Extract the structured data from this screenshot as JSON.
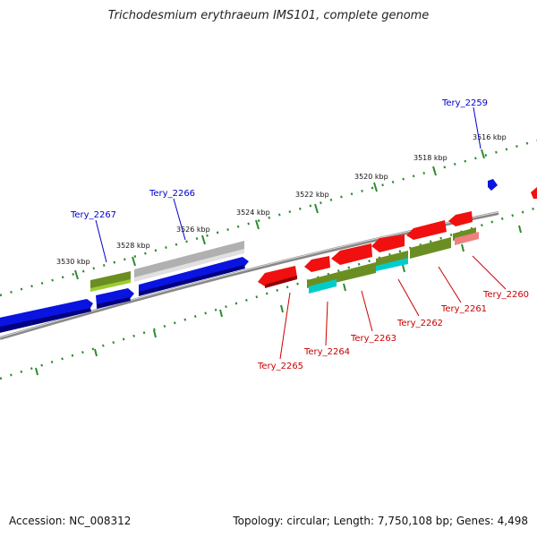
{
  "title": "Trichodesmium erythraeum IMS101, complete genome",
  "footer": {
    "accession": "Accession: NC_008312",
    "topology": "Topology: circular; Length: 7,750,108 bp; Genes: 4,498"
  },
  "scale_labels": [
    "3516 kbp",
    "3518 kbp",
    "3520 kbp",
    "3522 kbp",
    "3524 kbp",
    "3526 kbp",
    "3528 kbp",
    "3530 kbp"
  ],
  "forward_genes": [
    "Tery_2259",
    "Tery_2266",
    "Tery_2267"
  ],
  "reverse_genes": [
    "Tery_2260",
    "Tery_2261",
    "Tery_2262",
    "Tery_2263",
    "Tery_2264",
    "Tery_2265"
  ],
  "colors": {
    "forward_label": "#0000cc",
    "reverse_label": "#cc0000",
    "gene_blue": "#0a14e0",
    "gene_red": "#f01010",
    "gene_olive": "#6b8e23",
    "gene_cyan": "#00cccc",
    "gene_gray": "#b0b0b0",
    "tick_green": "#2e8b2e",
    "backbone": "#808080"
  }
}
